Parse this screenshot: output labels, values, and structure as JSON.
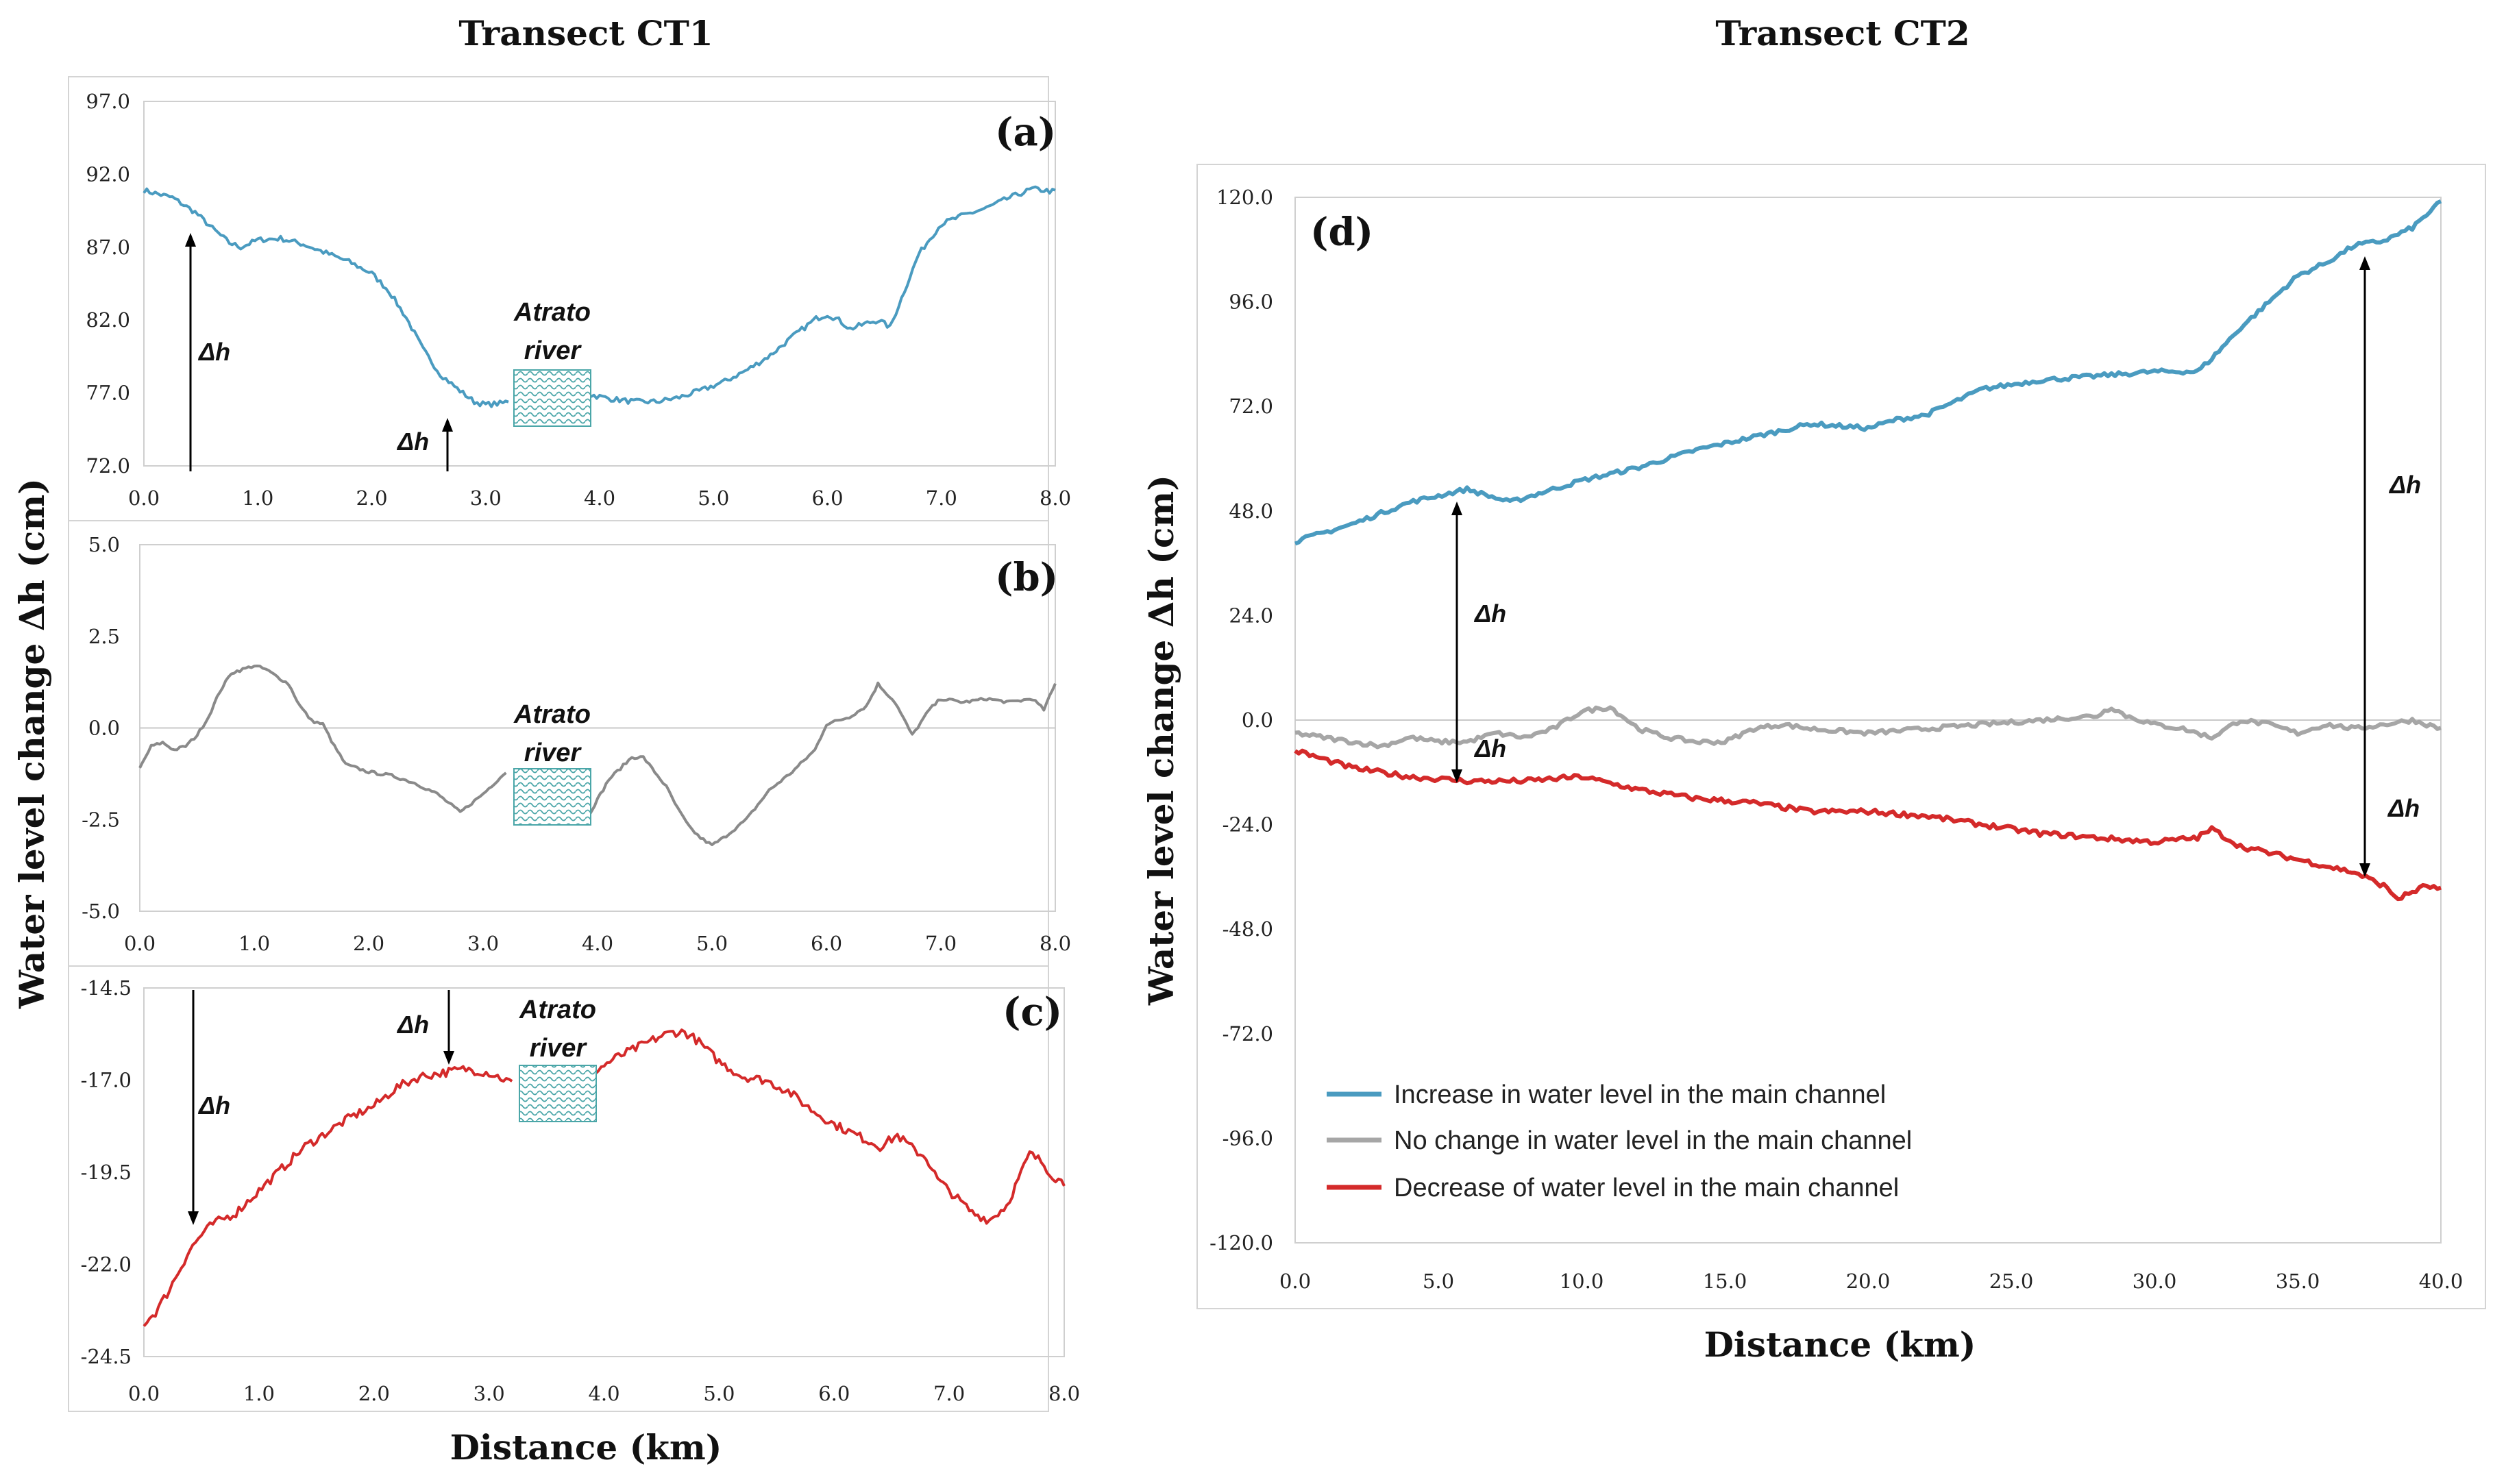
{
  "figure": {
    "title_left": "Transect CT1",
    "title_right": "Transect CT2",
    "ylabel_left": "Water level change Δh (cm)",
    "ylabel_right": "Water level change Δh (cm)",
    "xlabel_left": "Distance (km)",
    "xlabel_right": "Distance (km)",
    "river_label_line1": "Atrato",
    "river_label_line2": "river",
    "dh_label": "Δh"
  },
  "colors": {
    "increase": "#4a9bc0",
    "no_change": "#8a8a8a",
    "no_change_d": "#a6a6a6",
    "decrease": "#d42a2a",
    "river_hatch": "#4aa6a8",
    "gridline": "#c8c8c8"
  },
  "chart_data": [
    {
      "id": "a",
      "panel_label": "(a)",
      "type": "line",
      "xlim": [
        0.0,
        8.0
      ],
      "ylim": [
        72.0,
        97.0
      ],
      "xticks": [
        "0.0",
        "1.0",
        "2.0",
        "3.0",
        "4.0",
        "5.0",
        "6.0",
        "7.0",
        "8.0"
      ],
      "yticks": [
        "72.0",
        "77.0",
        "82.0",
        "87.0",
        "92.0",
        "97.0"
      ],
      "ytick_values": [
        72,
        77,
        82,
        87,
        92,
        97
      ],
      "river_x": [
        3.22,
        3.9
      ],
      "series": [
        {
          "name": "Increase in water level in the main channel",
          "color_key": "increase",
          "noise": 0.18,
          "x": [
            0.0,
            0.25,
            0.45,
            0.6,
            0.75,
            0.85,
            1.0,
            1.2,
            1.4,
            1.6,
            1.8,
            2.0,
            2.15,
            2.3,
            2.45,
            2.6,
            2.75,
            2.9,
            3.0,
            3.15,
            3.3,
            3.5,
            3.7,
            3.9,
            4.1,
            4.3,
            4.5,
            4.7,
            4.9,
            5.1,
            5.3,
            5.5,
            5.7,
            5.9,
            6.0,
            6.1,
            6.2,
            6.35,
            6.45,
            6.55,
            6.7,
            6.8,
            6.9,
            7.0,
            7.2,
            7.4,
            7.6,
            7.8,
            8.0
          ],
          "y": [
            90.9,
            90.4,
            89.4,
            88.3,
            87.3,
            87.0,
            87.5,
            87.6,
            87.2,
            86.6,
            86.0,
            85.2,
            84.0,
            82.2,
            80.0,
            78.3,
            77.3,
            76.4,
            76.2,
            76.3,
            76.8,
            77.4,
            77.3,
            76.9,
            76.6,
            76.4,
            76.4,
            76.7,
            77.2,
            77.8,
            78.6,
            79.6,
            80.9,
            82.1,
            82.4,
            82.0,
            81.4,
            81.8,
            82.0,
            81.5,
            84.5,
            86.5,
            87.6,
            88.6,
            89.2,
            89.7,
            90.4,
            91.0,
            90.8
          ]
        }
      ]
    },
    {
      "id": "b",
      "panel_label": "(b)",
      "type": "line",
      "xlim": [
        0.0,
        8.0
      ],
      "ylim": [
        -5.0,
        5.0
      ],
      "xticks": [
        "0.0",
        "1.0",
        "2.0",
        "3.0",
        "4.0",
        "5.0",
        "6.0",
        "7.0",
        "8.0"
      ],
      "yticks": [
        "-5.0",
        "-2.5",
        "0.0",
        "2.5",
        "5.0"
      ],
      "ytick_values": [
        -5.0,
        -2.5,
        0.0,
        2.5,
        5.0
      ],
      "river_x": [
        3.22,
        3.9
      ],
      "series": [
        {
          "name": "No change in water level in the main channel",
          "color_key": "no_change",
          "noise": 0.04,
          "x": [
            0.0,
            0.1,
            0.2,
            0.3,
            0.4,
            0.5,
            0.6,
            0.7,
            0.8,
            0.9,
            1.0,
            1.1,
            1.2,
            1.3,
            1.4,
            1.5,
            1.6,
            1.7,
            1.8,
            1.9,
            2.0,
            2.2,
            2.4,
            2.6,
            2.8,
            3.0,
            3.2,
            3.9,
            4.1,
            4.3,
            4.4,
            4.5,
            4.6,
            4.7,
            4.8,
            4.9,
            5.0,
            5.1,
            5.3,
            5.5,
            5.7,
            5.9,
            6.0,
            6.2,
            6.35,
            6.45,
            6.6,
            6.75,
            6.9,
            7.0,
            7.2,
            7.4,
            7.6,
            7.8,
            7.9,
            8.0
          ],
          "y": [
            -1.1,
            -0.5,
            -0.4,
            -0.6,
            -0.5,
            -0.2,
            0.3,
            1.0,
            1.5,
            1.6,
            1.7,
            1.6,
            1.4,
            1.2,
            0.6,
            0.2,
            0.1,
            -0.5,
            -1.0,
            -1.1,
            -1.2,
            -1.3,
            -1.5,
            -1.8,
            -2.3,
            -1.8,
            -1.2,
            -2.5,
            -1.4,
            -0.8,
            -0.8,
            -1.2,
            -1.6,
            -2.2,
            -2.7,
            -3.0,
            -3.2,
            -3.0,
            -2.5,
            -1.7,
            -1.2,
            -0.6,
            0.1,
            0.3,
            0.6,
            1.2,
            0.7,
            -0.2,
            0.5,
            0.8,
            0.7,
            0.8,
            0.7,
            0.8,
            0.5,
            1.2
          ]
        }
      ]
    },
    {
      "id": "c",
      "panel_label": "(c)",
      "type": "line",
      "xlim": [
        0.0,
        8.0
      ],
      "ylim": [
        -24.5,
        -14.5
      ],
      "xticks": [
        "0.0",
        "1.0",
        "2.0",
        "3.0",
        "4.0",
        "5.0",
        "6.0",
        "7.0",
        "8.0"
      ],
      "yticks": [
        "-24.5",
        "-22.0",
        "-19.5",
        "-17.0",
        "-14.5"
      ],
      "ytick_values": [
        -24.5,
        -22.0,
        -19.5,
        -17.0,
        -14.5
      ],
      "river_x": [
        3.22,
        3.9
      ],
      "series": [
        {
          "name": "Decrease of water level in the main channel",
          "color_key": "decrease",
          "noise": 0.12,
          "x": [
            0.0,
            0.1,
            0.2,
            0.3,
            0.4,
            0.5,
            0.6,
            0.8,
            1.0,
            1.2,
            1.4,
            1.6,
            1.8,
            2.0,
            2.2,
            2.4,
            2.6,
            2.8,
            3.0,
            3.22,
            3.9,
            4.1,
            4.3,
            4.5,
            4.6,
            4.7,
            4.8,
            5.0,
            5.2,
            5.4,
            5.6,
            5.8,
            6.0,
            6.2,
            6.4,
            6.55,
            6.7,
            6.8,
            6.9,
            7.0,
            7.2,
            7.35,
            7.5,
            7.6,
            7.7,
            7.8,
            7.9,
            8.0
          ],
          "y": [
            -23.6,
            -23.3,
            -22.8,
            -22.2,
            -21.6,
            -21.2,
            -20.9,
            -20.6,
            -20.0,
            -19.4,
            -18.8,
            -18.4,
            -18.0,
            -17.7,
            -17.2,
            -16.9,
            -16.8,
            -16.7,
            -16.8,
            -17.1,
            -16.8,
            -16.4,
            -16.1,
            -15.8,
            -15.7,
            -15.7,
            -15.9,
            -16.5,
            -16.9,
            -17.0,
            -17.3,
            -17.8,
            -18.2,
            -18.5,
            -18.8,
            -18.5,
            -18.9,
            -19.1,
            -19.7,
            -20.0,
            -20.6,
            -20.8,
            -20.4,
            -19.7,
            -19.0,
            -19.2,
            -19.6,
            -19.8
          ]
        }
      ]
    },
    {
      "id": "d",
      "panel_label": "(d)",
      "type": "line",
      "xlim": [
        0.0,
        40.0
      ],
      "ylim": [
        -120.0,
        120.0
      ],
      "xticks": [
        "0.0",
        "5.0",
        "10.0",
        "15.0",
        "20.0",
        "25.0",
        "30.0",
        "35.0",
        "40.0"
      ],
      "yticks": [
        "-120.0",
        "-96.0",
        "-72.0",
        "-48.0",
        "-24.0",
        "0.0",
        "24.0",
        "48.0",
        "72.0",
        "96.0",
        "120.0"
      ],
      "ytick_values": [
        -120,
        -96,
        -72,
        -48,
        -24,
        0,
        24,
        48,
        72,
        96,
        120
      ],
      "legend_position": "bottom-left",
      "series": [
        {
          "name": "Increase in water level in the main channel",
          "color_key": "increase",
          "noise": 0.5,
          "x": [
            0,
            2,
            4,
            6,
            7.5,
            8.5,
            10,
            12,
            14,
            16,
            18,
            20,
            21,
            22,
            24,
            26,
            28,
            30,
            31.5,
            32,
            33,
            34,
            35,
            36,
            37,
            38,
            39,
            40
          ],
          "y": [
            41,
            45,
            50,
            53,
            50,
            52,
            55,
            58,
            62,
            65,
            68,
            67,
            69,
            70,
            76,
            78,
            79,
            80,
            80,
            83,
            90,
            96,
            102,
            105,
            109,
            110,
            113,
            119
          ]
        },
        {
          "name": "No change in water level in the main channel",
          "color_key": "no_change_d",
          "noise": 0.5,
          "x": [
            0,
            2,
            3,
            4,
            5,
            6,
            7,
            8,
            9,
            10,
            11,
            12,
            13,
            14,
            15,
            16,
            17,
            18,
            20,
            22,
            24,
            26,
            28,
            28.5,
            29,
            30,
            31,
            32,
            33,
            34,
            35,
            36,
            37,
            38,
            39,
            40
          ],
          "y": [
            -3,
            -5,
            -6,
            -4,
            -5,
            -5,
            -3,
            -4,
            -2,
            2,
            3,
            -2,
            -4,
            -5,
            -5,
            -2,
            -1,
            -2,
            -3,
            -2,
            -1,
            0,
            1,
            3,
            1,
            -1,
            -2,
            -4,
            0,
            -1,
            -3,
            -1,
            -2,
            -1,
            0,
            -2
          ]
        },
        {
          "name": "Decrease of water level in the main channel",
          "color_key": "decrease",
          "noise": 0.6,
          "x": [
            0,
            2,
            4,
            6,
            8,
            10,
            12,
            14,
            16,
            18,
            20,
            22,
            24,
            26,
            28,
            30,
            31.5,
            32,
            33,
            35,
            37,
            38,
            38.5,
            39.5,
            40
          ],
          "y": [
            -7,
            -11,
            -13,
            -14,
            -14,
            -13,
            -16,
            -18,
            -19,
            -21,
            -21,
            -22,
            -24,
            -26,
            -27,
            -28,
            -27,
            -25,
            -29,
            -32,
            -35,
            -38,
            -41,
            -38,
            -39
          ]
        }
      ]
    }
  ]
}
